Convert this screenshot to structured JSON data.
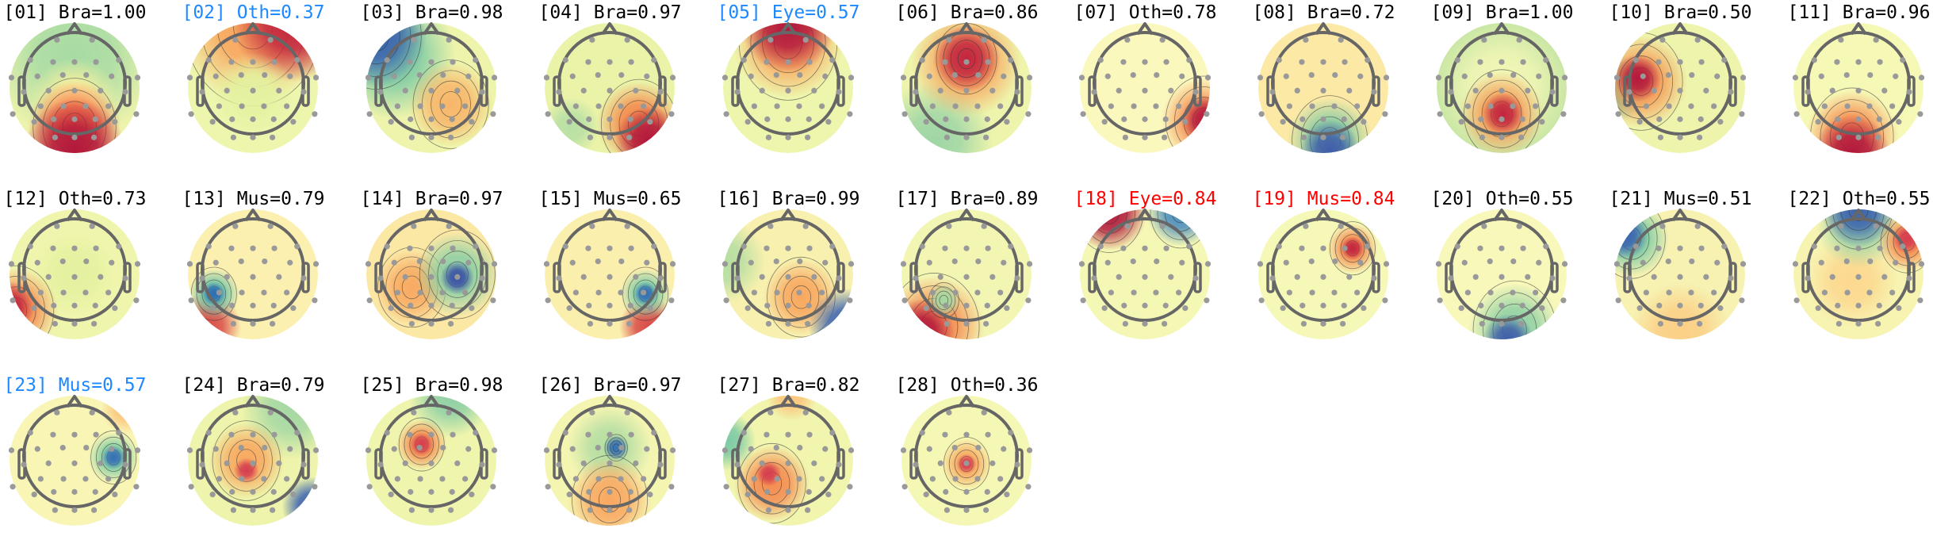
{
  "colors": {
    "default_label": "#000000",
    "highlight_blue": "#1e88ff",
    "highlight_red": "#ff0000",
    "head_outline": "#666666",
    "electrode": "#999999"
  },
  "colormap": [
    "#9e0142",
    "#d53e4f",
    "#f46d43",
    "#fdae61",
    "#fee08b",
    "#ffffbf",
    "#e6f598",
    "#abdda4",
    "#66c2a5",
    "#3288bd",
    "#5e4fa2"
  ],
  "components": [
    {
      "title": "[01] Bra=1.00",
      "label_color": "#000000"
    },
    {
      "title": "[02] Oth=0.37",
      "label_color": "#1e88ff"
    },
    {
      "title": "[03] Bra=0.98",
      "label_color": "#000000"
    },
    {
      "title": "[04] Bra=0.97",
      "label_color": "#000000"
    },
    {
      "title": "[05] Eye=0.57",
      "label_color": "#1e88ff"
    },
    {
      "title": "[06] Bra=0.86",
      "label_color": "#000000"
    },
    {
      "title": "[07] Oth=0.78",
      "label_color": "#000000"
    },
    {
      "title": "[08] Bra=0.72",
      "label_color": "#000000"
    },
    {
      "title": "[09] Bra=1.00",
      "label_color": "#000000"
    },
    {
      "title": "[10] Bra=0.50",
      "label_color": "#000000"
    },
    {
      "title": "[11] Bra=0.96",
      "label_color": "#000000"
    },
    {
      "title": "[12] Oth=0.73",
      "label_color": "#000000"
    },
    {
      "title": "[13] Mus=0.79",
      "label_color": "#000000"
    },
    {
      "title": "[14] Bra=0.97",
      "label_color": "#000000"
    },
    {
      "title": "[15] Mus=0.65",
      "label_color": "#000000"
    },
    {
      "title": "[16] Bra=0.99",
      "label_color": "#000000"
    },
    {
      "title": "[17] Bra=0.89",
      "label_color": "#000000"
    },
    {
      "title": "[18] Eye=0.84",
      "label_color": "#ff0000"
    },
    {
      "title": "[19] Mus=0.84",
      "label_color": "#ff0000"
    },
    {
      "title": "[20] Oth=0.55",
      "label_color": "#000000"
    },
    {
      "title": "[21] Mus=0.51",
      "label_color": "#000000"
    },
    {
      "title": "[22] Oth=0.55",
      "label_color": "#000000"
    },
    {
      "title": "[23] Mus=0.57",
      "label_color": "#1e88ff"
    },
    {
      "title": "[24] Bra=0.79",
      "label_color": "#000000"
    },
    {
      "title": "[25] Bra=0.98",
      "label_color": "#000000"
    },
    {
      "title": "[26] Bra=0.97",
      "label_color": "#000000"
    },
    {
      "title": "[27] Bra=0.82",
      "label_color": "#000000"
    },
    {
      "title": "[28] Oth=0.36",
      "label_color": "#000000"
    }
  ]
}
